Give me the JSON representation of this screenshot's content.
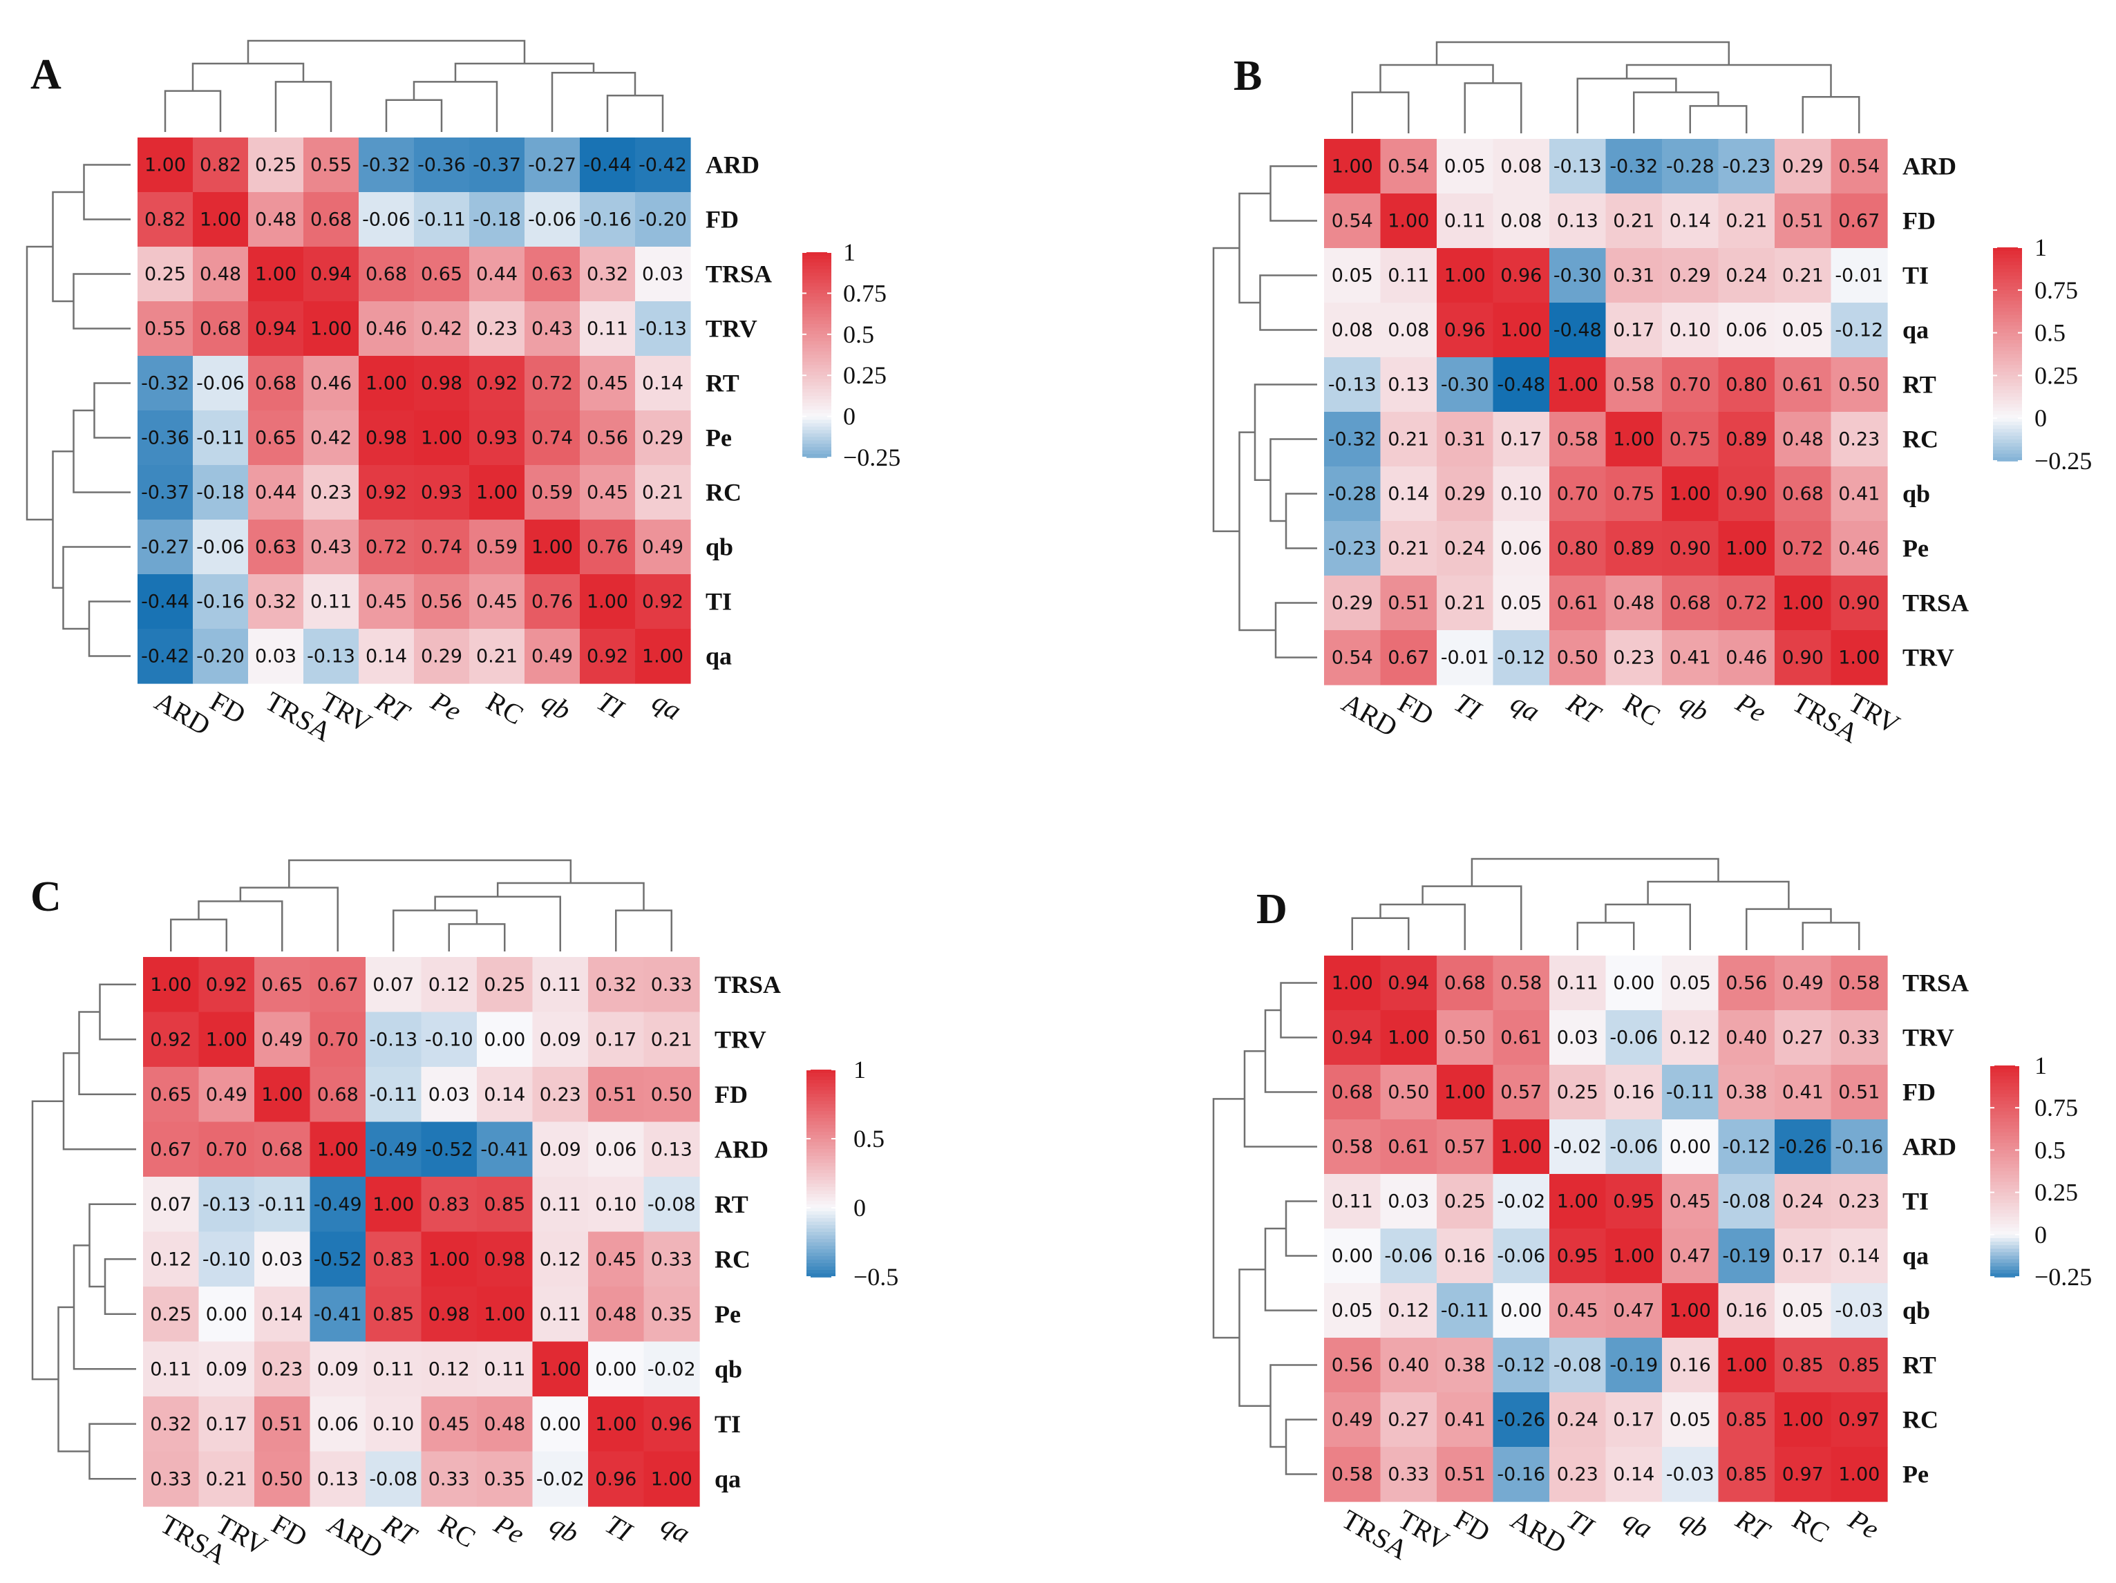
{
  "chart_data": [
    {
      "panel": "A",
      "type": "heatmap",
      "row_labels": [
        "ARD",
        "FD",
        "TRSA",
        "TRV",
        "RT",
        "Pe",
        "RC",
        "qb",
        "TI",
        "qa"
      ],
      "col_labels": [
        "ARD",
        "FD",
        "TRSA",
        "TRV",
        "RT",
        "Pe",
        "RC",
        "qb",
        "TI",
        "qa"
      ],
      "col_label_style": [
        "upright",
        "upright",
        "upright",
        "upright",
        "italic",
        "italic",
        "upright",
        "italic",
        "italic",
        "italic"
      ],
      "values": [
        [
          1.0,
          0.82,
          0.25,
          0.55,
          -0.32,
          -0.36,
          -0.37,
          -0.27,
          -0.44,
          -0.42
        ],
        [
          0.82,
          1.0,
          0.48,
          0.68,
          -0.06,
          -0.11,
          -0.18,
          -0.06,
          -0.16,
          -0.2
        ],
        [
          0.25,
          0.48,
          1.0,
          0.94,
          0.68,
          0.65,
          0.44,
          0.63,
          0.32,
          0.03
        ],
        [
          0.55,
          0.68,
          0.94,
          1.0,
          0.46,
          0.42,
          0.23,
          0.43,
          0.11,
          -0.13
        ],
        [
          -0.32,
          -0.06,
          0.68,
          0.46,
          1.0,
          0.98,
          0.92,
          0.72,
          0.45,
          0.14
        ],
        [
          -0.36,
          -0.11,
          0.65,
          0.42,
          0.98,
          1.0,
          0.93,
          0.74,
          0.56,
          0.29
        ],
        [
          -0.37,
          -0.18,
          0.44,
          0.23,
          0.92,
          0.93,
          1.0,
          0.59,
          0.45,
          0.21
        ],
        [
          -0.27,
          -0.06,
          0.63,
          0.43,
          0.72,
          0.74,
          0.59,
          1.0,
          0.76,
          0.49
        ],
        [
          -0.44,
          -0.16,
          0.32,
          0.11,
          0.45,
          0.56,
          0.45,
          0.76,
          1.0,
          0.92
        ],
        [
          -0.42,
          -0.2,
          0.03,
          -0.13,
          0.14,
          0.29,
          0.21,
          0.49,
          0.92,
          1.0
        ]
      ],
      "color_range": [
        -0.45,
        1.0
      ],
      "legend_ticks": [
        "1",
        "0.75",
        "0.5",
        "0.25",
        "0",
        "−0.25"
      ],
      "legend_values": [
        1,
        0.75,
        0.5,
        0.25,
        0,
        -0.25
      ]
    },
    {
      "panel": "B",
      "type": "heatmap",
      "row_labels": [
        "ARD",
        "FD",
        "TI",
        "qa",
        "RT",
        "RC",
        "qb",
        "Pe",
        "TRSA",
        "TRV"
      ],
      "col_labels": [
        "ARD",
        "FD",
        "TI",
        "qa",
        "RT",
        "RC",
        "qb",
        "Pe",
        "TRSA",
        "TRV"
      ],
      "col_label_style": [
        "upright",
        "upright",
        "italic",
        "italic",
        "italic",
        "upright",
        "italic",
        "italic",
        "upright",
        "upright"
      ],
      "values": [
        [
          1.0,
          0.54,
          0.05,
          0.08,
          -0.13,
          -0.32,
          -0.28,
          -0.23,
          0.29,
          0.54
        ],
        [
          0.54,
          1.0,
          0.11,
          0.08,
          0.13,
          0.21,
          0.14,
          0.21,
          0.51,
          0.67
        ],
        [
          0.05,
          0.11,
          1.0,
          0.96,
          -0.3,
          0.31,
          0.29,
          0.24,
          0.21,
          -0.01
        ],
        [
          0.08,
          0.08,
          0.96,
          1.0,
          -0.48,
          0.17,
          0.1,
          0.06,
          0.05,
          -0.12
        ],
        [
          -0.13,
          0.13,
          -0.3,
          -0.48,
          1.0,
          0.58,
          0.7,
          0.8,
          0.61,
          0.5
        ],
        [
          -0.32,
          0.21,
          0.31,
          0.17,
          0.58,
          1.0,
          0.75,
          0.89,
          0.48,
          0.23
        ],
        [
          -0.28,
          0.14,
          0.29,
          0.1,
          0.7,
          0.75,
          1.0,
          0.9,
          0.68,
          0.41
        ],
        [
          -0.23,
          0.21,
          0.24,
          0.06,
          0.8,
          0.89,
          0.9,
          1.0,
          0.72,
          0.46
        ],
        [
          0.29,
          0.51,
          0.21,
          0.05,
          0.61,
          0.48,
          0.68,
          0.72,
          1.0,
          0.9
        ],
        [
          0.54,
          0.67,
          -0.01,
          -0.12,
          0.5,
          0.23,
          0.41,
          0.46,
          0.9,
          1.0
        ]
      ],
      "color_range": [
        -0.48,
        1.0
      ],
      "legend_ticks": [
        "1",
        "0.75",
        "0.5",
        "0.25",
        "0",
        "−0.25"
      ],
      "legend_values": [
        1,
        0.75,
        0.5,
        0.25,
        0,
        -0.25
      ]
    },
    {
      "panel": "C",
      "type": "heatmap",
      "row_labels": [
        "TRSA",
        "TRV",
        "FD",
        "ARD",
        "RT",
        "RC",
        "Pe",
        "qb",
        "TI",
        "qa"
      ],
      "col_labels": [
        "TRSA",
        "TRV",
        "FD",
        "ARD",
        "RT",
        "RC",
        "Pe",
        "qb",
        "TI",
        "qa"
      ],
      "col_label_style": [
        "upright",
        "upright",
        "upright",
        "upright",
        "italic",
        "upright",
        "italic",
        "italic",
        "italic",
        "italic"
      ],
      "values": [
        [
          1.0,
          0.92,
          0.65,
          0.67,
          0.07,
          0.12,
          0.25,
          0.11,
          0.32,
          0.33
        ],
        [
          0.92,
          1.0,
          0.49,
          0.7,
          -0.13,
          -0.1,
          -0.0,
          0.09,
          0.17,
          0.21
        ],
        [
          0.65,
          0.49,
          1.0,
          0.68,
          -0.11,
          0.03,
          0.14,
          0.23,
          0.51,
          0.5
        ],
        [
          0.67,
          0.7,
          0.68,
          1.0,
          -0.49,
          -0.52,
          -0.41,
          0.09,
          0.06,
          0.13
        ],
        [
          0.07,
          -0.13,
          -0.11,
          -0.49,
          1.0,
          0.83,
          0.85,
          0.11,
          0.1,
          -0.08
        ],
        [
          0.12,
          -0.1,
          0.03,
          -0.52,
          0.83,
          1.0,
          0.98,
          0.12,
          0.45,
          0.33
        ],
        [
          0.25,
          -0.0,
          0.14,
          -0.41,
          0.85,
          0.98,
          1.0,
          0.11,
          0.48,
          0.35
        ],
        [
          0.11,
          0.09,
          0.23,
          0.09,
          0.11,
          0.12,
          0.11,
          1.0,
          0.0,
          -0.02
        ],
        [
          0.32,
          0.17,
          0.51,
          0.06,
          0.1,
          0.45,
          0.48,
          0.0,
          1.0,
          0.96
        ],
        [
          0.33,
          0.21,
          0.5,
          0.13,
          -0.08,
          0.33,
          0.35,
          -0.02,
          0.96,
          1.0
        ]
      ],
      "color_range": [
        -0.55,
        1.0
      ],
      "legend_ticks": [
        "1",
        "0.5",
        "0",
        "−0.5"
      ],
      "legend_values": [
        1,
        0.5,
        0,
        -0.5
      ]
    },
    {
      "panel": "D",
      "type": "heatmap",
      "row_labels": [
        "TRSA",
        "TRV",
        "FD",
        "ARD",
        "TI",
        "qa",
        "qb",
        "RT",
        "RC",
        "Pe"
      ],
      "col_labels": [
        "TRSA",
        "TRV",
        "FD",
        "ARD",
        "TI",
        "qa",
        "qb",
        "RT",
        "RC",
        "Pe"
      ],
      "col_label_style": [
        "upright",
        "upright",
        "upright",
        "upright",
        "italic",
        "italic",
        "italic",
        "italic",
        "upright",
        "italic"
      ],
      "values": [
        [
          1.0,
          0.94,
          0.68,
          0.58,
          0.11,
          -0.0,
          0.05,
          0.56,
          0.49,
          0.58
        ],
        [
          0.94,
          1.0,
          0.5,
          0.61,
          0.03,
          -0.06,
          0.12,
          0.4,
          0.27,
          0.33
        ],
        [
          0.68,
          0.5,
          1.0,
          0.57,
          0.25,
          0.16,
          -0.11,
          0.38,
          0.41,
          0.51
        ],
        [
          0.58,
          0.61,
          0.57,
          1.0,
          -0.02,
          -0.06,
          -0.0,
          -0.12,
          -0.26,
          -0.16
        ],
        [
          0.11,
          0.03,
          0.25,
          -0.02,
          1.0,
          0.95,
          0.45,
          -0.08,
          0.24,
          0.23
        ],
        [
          -0.0,
          -0.06,
          0.16,
          -0.06,
          0.95,
          1.0,
          0.47,
          -0.19,
          0.17,
          0.14
        ],
        [
          0.05,
          0.12,
          -0.11,
          -0.0,
          0.45,
          0.47,
          1.0,
          0.16,
          0.05,
          -0.03
        ],
        [
          0.56,
          0.4,
          0.38,
          -0.12,
          -0.08,
          -0.19,
          0.16,
          1.0,
          0.85,
          0.85
        ],
        [
          0.49,
          0.27,
          0.41,
          -0.26,
          0.24,
          0.17,
          0.05,
          0.85,
          1.0,
          0.97
        ],
        [
          0.58,
          0.33,
          0.51,
          -0.16,
          0.23,
          0.14,
          -0.03,
          0.85,
          0.97,
          1.0
        ]
      ],
      "color_range": [
        -0.28,
        1.0
      ],
      "legend_ticks": [
        "1",
        "0.75",
        "0.5",
        "0.25",
        "0",
        "−0.25"
      ],
      "legend_values": [
        1,
        0.75,
        0.5,
        0.25,
        0,
        -0.25
      ]
    }
  ],
  "colors": {
    "low": "#1470b2",
    "mid": "#f8f8fb",
    "high": "#e12a33",
    "dendro": "#707070"
  }
}
